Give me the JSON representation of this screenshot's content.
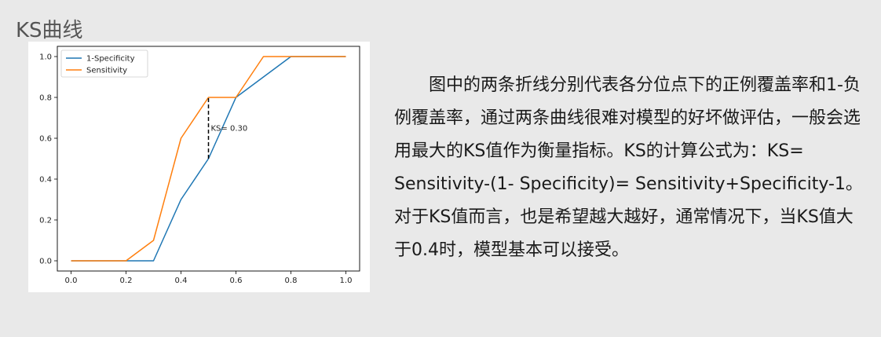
{
  "slide": {
    "title": "KS曲线"
  },
  "description": {
    "lines": [
      "图中的两条折线分别代表各分位点下的正例覆盖率和1",
      "-负例覆盖率，通过两条曲线很难对模型的好坏做评估，一",
      "般会选用最大的KS值作为衡量指标。KS的计算公式为：",
      "KS= Sensitivity-(1- Specificity)= Sensitivity+",
      "Specificity-1。对于KS值而言，也是希望越大越好，通常",
      "情况下，当KS值大于0.4时，模型基本可以接受。"
    ]
  },
  "colors": {
    "series_1": "#1f77b4",
    "series_2": "#ff7f0e"
  },
  "chart_data": {
    "type": "line",
    "title": "",
    "xlabel": "",
    "ylabel": "",
    "xlim": [
      -0.05,
      1.05
    ],
    "ylim": [
      -0.05,
      1.05
    ],
    "x_ticks": [
      0.0,
      0.2,
      0.4,
      0.6,
      0.8,
      1.0
    ],
    "y_ticks": [
      0.0,
      0.2,
      0.4,
      0.6,
      0.8,
      1.0
    ],
    "x_tick_labels": [
      "0.0",
      "0.2",
      "0.4",
      "0.6",
      "0.8",
      "1.0"
    ],
    "y_tick_labels": [
      "0.0",
      "0.2",
      "0.4",
      "0.6",
      "0.8",
      "1.0"
    ],
    "grid": false,
    "legend_position": "top-left",
    "series": [
      {
        "name": "1-Specificity",
        "color": "#1f77b4",
        "x": [
          0.0,
          0.1,
          0.2,
          0.3,
          0.4,
          0.5,
          0.6,
          0.7,
          0.8,
          0.9,
          1.0
        ],
        "y": [
          0.0,
          0.0,
          0.0,
          0.0,
          0.3,
          0.5,
          0.8,
          0.9,
          1.0,
          1.0,
          1.0
        ]
      },
      {
        "name": "Sensitivity",
        "color": "#ff7f0e",
        "x": [
          0.0,
          0.1,
          0.2,
          0.3,
          0.4,
          0.5,
          0.6,
          0.7,
          0.8,
          0.9,
          1.0
        ],
        "y": [
          0.0,
          0.0,
          0.0,
          0.1,
          0.6,
          0.8,
          0.8,
          1.0,
          1.0,
          1.0,
          1.0
        ]
      }
    ],
    "annotation": {
      "text": "KS= 0.30",
      "x": 0.5,
      "y_from": 0.5,
      "y_to": 0.8,
      "label_y": 0.65
    }
  }
}
